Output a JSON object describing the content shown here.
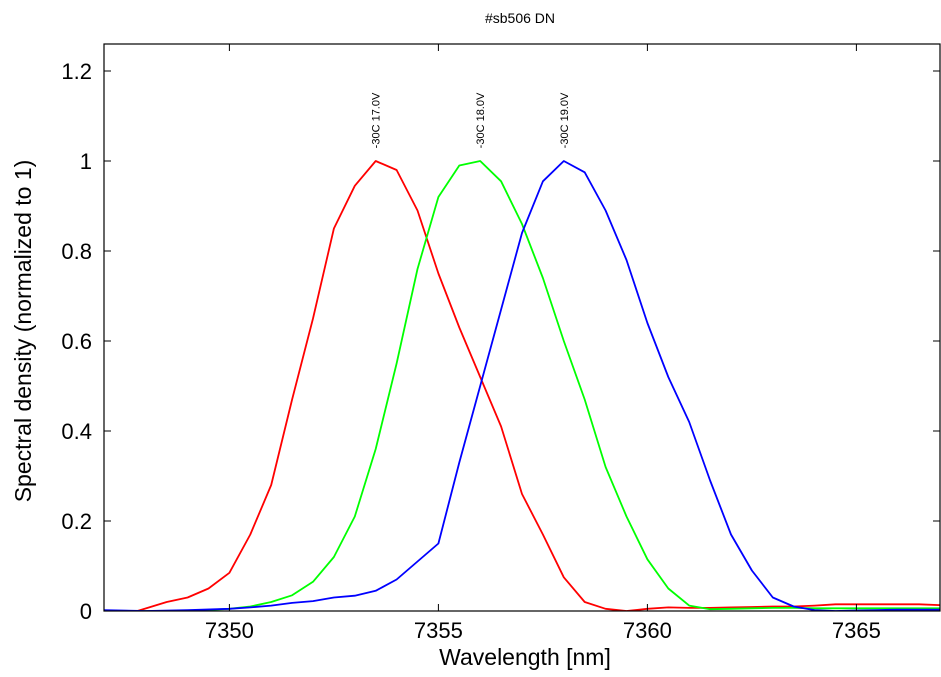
{
  "chart_data": {
    "type": "line",
    "title": "#sb506 DN",
    "xlabel": "Wavelength [nm]",
    "ylabel": "Spectral density (normalized to 1)",
    "xlim": [
      7347,
      7367
    ],
    "ylim": [
      0,
      1.26
    ],
    "x_ticks": [
      7350,
      7355,
      7360,
      7365
    ],
    "y_ticks": [
      0,
      0.2,
      0.4,
      0.6,
      0.8,
      1,
      1.2
    ],
    "x_tick_labels": [
      "7350",
      "7355",
      "7360",
      "7365"
    ],
    "y_tick_labels": [
      "0",
      "0.2",
      "0.4",
      "0.6",
      "0.8",
      "1",
      "1.2"
    ],
    "grid": false,
    "series": [
      {
        "name": "-30C 17.0V",
        "color": "#ff0000",
        "x": [
          7347,
          7347.8,
          7348.5,
          7349,
          7349.5,
          7350,
          7350.5,
          7351,
          7351.5,
          7352,
          7352.5,
          7353,
          7353.5,
          7354,
          7354.5,
          7355,
          7355.5,
          7356,
          7356.5,
          7357,
          7357.5,
          7358,
          7358.5,
          7359,
          7359.5,
          7360,
          7360.5,
          7361,
          7361.5,
          7362,
          7362.5,
          7363,
          7363.5,
          7364,
          7364.5,
          7365,
          7365.5,
          7366,
          7366.5,
          7367
        ],
        "values": [
          0.0,
          0.0,
          0.02,
          0.03,
          0.05,
          0.085,
          0.17,
          0.28,
          0.47,
          0.65,
          0.85,
          0.945,
          1.0,
          0.98,
          0.89,
          0.75,
          0.63,
          0.52,
          0.41,
          0.26,
          0.17,
          0.075,
          0.02,
          0.005,
          0.0,
          0.005,
          0.008,
          0.007,
          0.007,
          0.008,
          0.009,
          0.01,
          0.01,
          0.012,
          0.015,
          0.015,
          0.015,
          0.015,
          0.015,
          0.013
        ]
      },
      {
        "name": "-30C 18.0V",
        "color": "#00ff00",
        "x": [
          7347,
          7348,
          7349,
          7350,
          7350.5,
          7351,
          7351.5,
          7352,
          7352.5,
          7353,
          7353.5,
          7354,
          7354.5,
          7355,
          7355.5,
          7356,
          7356.5,
          7357,
          7357.5,
          7358,
          7358.5,
          7359,
          7359.5,
          7360,
          7360.5,
          7361,
          7361.5,
          7362,
          7362.5,
          7363,
          7363.5,
          7364,
          7364.5,
          7365,
          7365.5,
          7366,
          7366.5,
          7367
        ],
        "values": [
          0.0,
          0.0,
          0.0,
          0.005,
          0.01,
          0.02,
          0.035,
          0.065,
          0.12,
          0.21,
          0.36,
          0.55,
          0.76,
          0.92,
          0.99,
          1.0,
          0.955,
          0.86,
          0.74,
          0.6,
          0.47,
          0.32,
          0.21,
          0.115,
          0.05,
          0.012,
          0.004,
          0.005,
          0.006,
          0.007,
          0.007,
          0.006,
          0.006,
          0.006,
          0.006,
          0.006,
          0.006,
          0.006
        ]
      },
      {
        "name": "-30C 19.0V",
        "color": "#0000ff",
        "x": [
          7347,
          7348,
          7349,
          7350,
          7350.5,
          7351,
          7351.5,
          7352,
          7352.5,
          7353,
          7353.5,
          7354,
          7354.5,
          7355,
          7355.5,
          7356,
          7356.5,
          7357,
          7357.5,
          7358,
          7358.5,
          7359,
          7359.5,
          7360,
          7360.5,
          7361,
          7361.5,
          7362,
          7362.5,
          7363,
          7363.5,
          7364,
          7364.5,
          7365,
          7365.5,
          7366,
          7366.5,
          7367
        ],
        "values": [
          0.002,
          0.0,
          0.002,
          0.005,
          0.008,
          0.012,
          0.018,
          0.022,
          0.03,
          0.034,
          0.045,
          0.07,
          0.11,
          0.15,
          0.33,
          0.5,
          0.67,
          0.84,
          0.955,
          1.0,
          0.975,
          0.89,
          0.78,
          0.64,
          0.52,
          0.42,
          0.29,
          0.17,
          0.09,
          0.03,
          0.01,
          0.002,
          0.0,
          0.001,
          0.002,
          0.003,
          0.003,
          0.003
        ]
      }
    ],
    "annotations": [
      {
        "text": "-30C 17.0V",
        "x": 7353.5,
        "y": 1.09
      },
      {
        "text": "-30C 18.0V",
        "x": 7356.0,
        "y": 1.09
      },
      {
        "text": "-30C 19.0V",
        "x": 7358.0,
        "y": 1.09
      }
    ]
  }
}
